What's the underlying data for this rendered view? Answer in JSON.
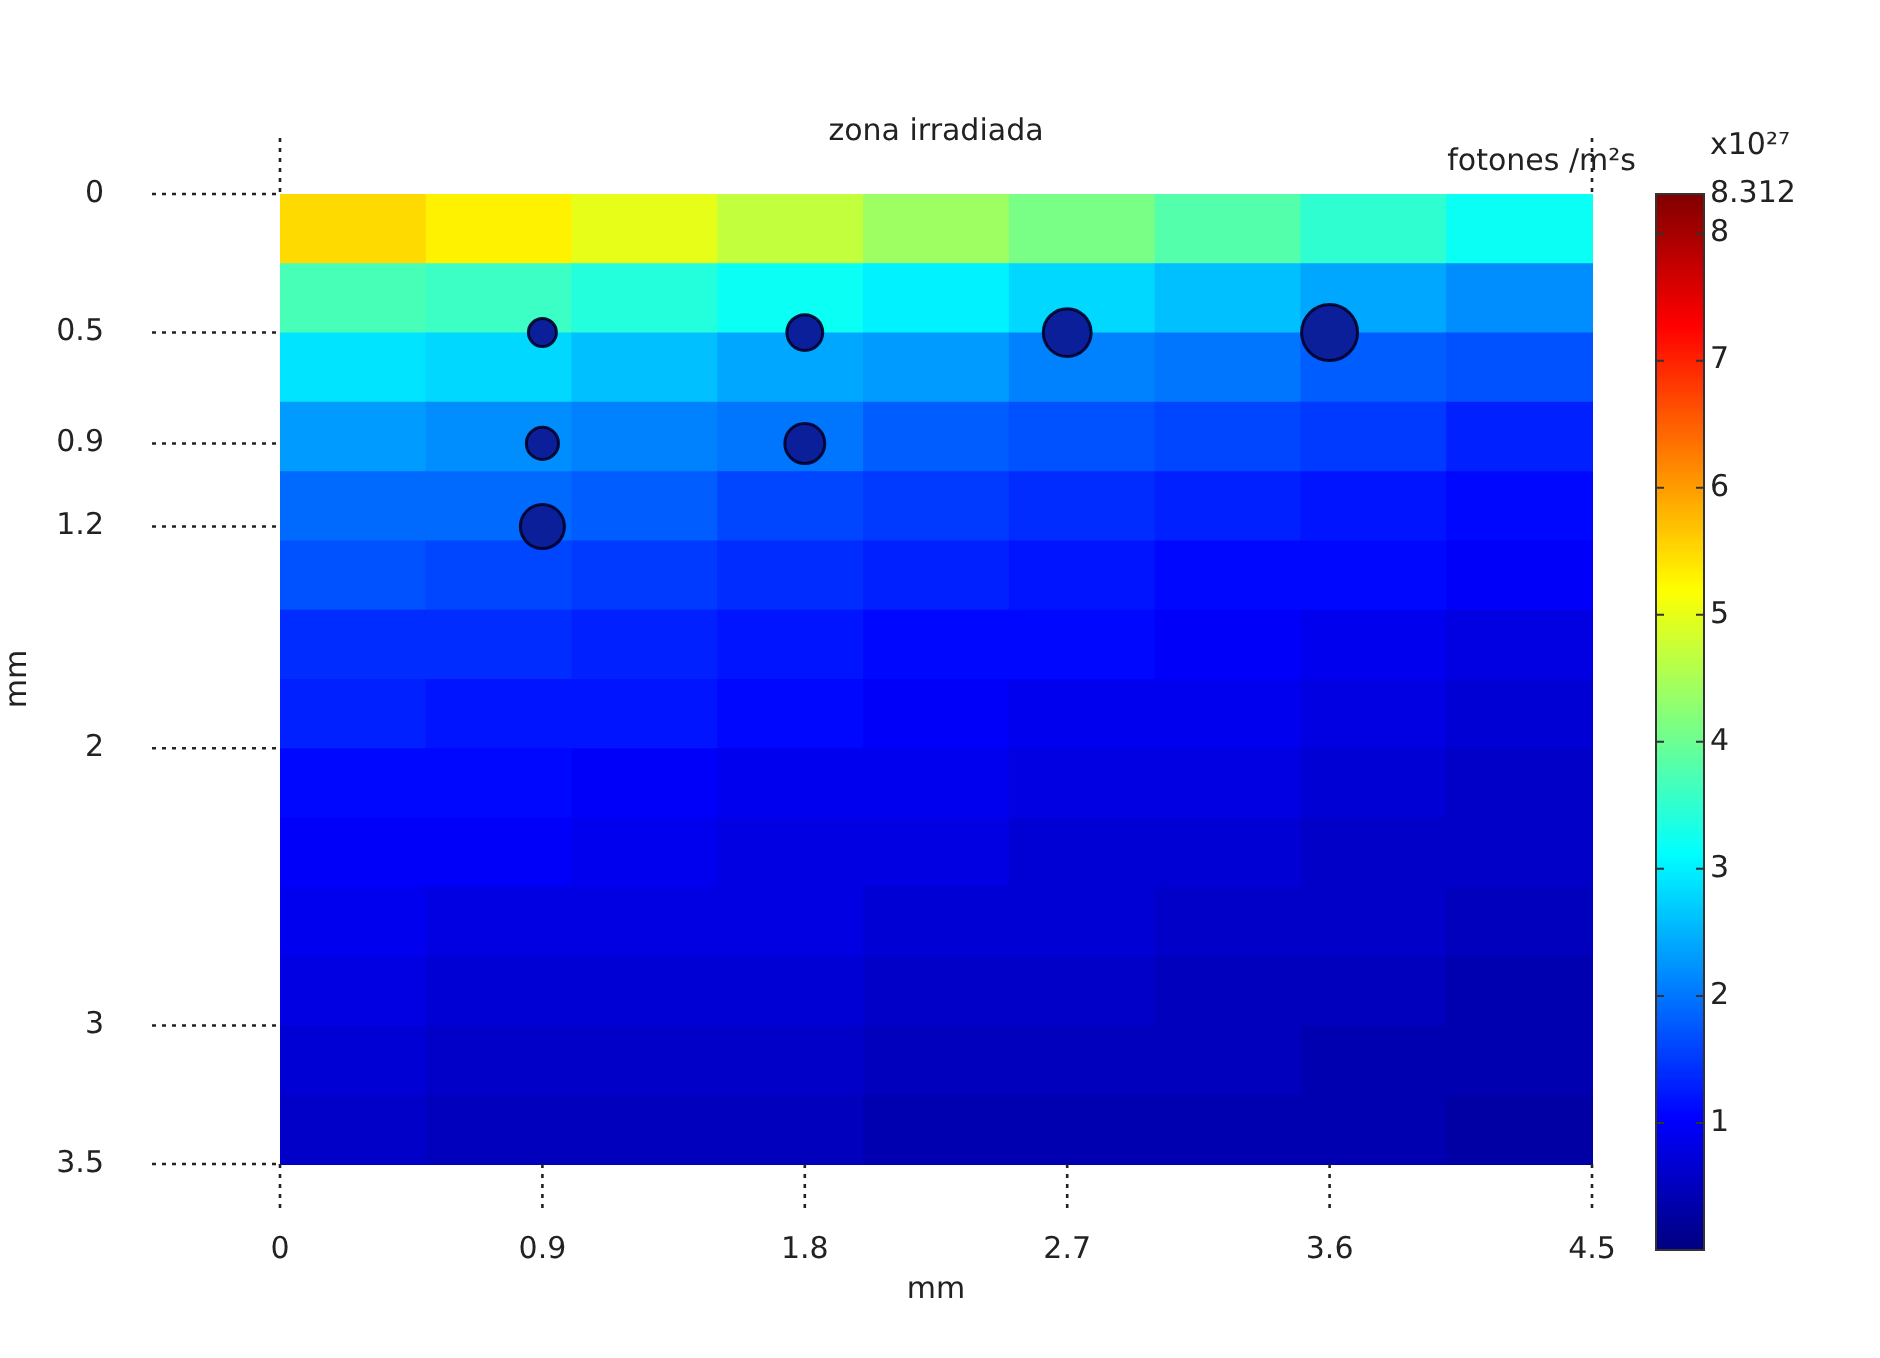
{
  "chart_data": {
    "type": "heatmap",
    "title": "zona irradiada",
    "xlabel": "mm",
    "ylabel": "mm",
    "clabel": "fotones /m²s",
    "annotations": [
      "x10²⁷"
    ],
    "cells": [
      [
        5.5,
        5.3,
        5.0,
        4.7,
        4.4,
        4.1,
        3.8,
        3.5,
        3.2
      ],
      [
        3.7,
        3.6,
        3.4,
        3.2,
        3.0,
        2.8,
        2.6,
        2.4,
        2.2
      ],
      [
        2.9,
        2.8,
        2.6,
        2.4,
        2.3,
        2.1,
        2.0,
        1.8,
        1.7
      ],
      [
        2.3,
        2.2,
        2.1,
        2.0,
        1.8,
        1.7,
        1.6,
        1.5,
        1.3
      ],
      [
        1.9,
        1.9,
        1.8,
        1.6,
        1.5,
        1.4,
        1.3,
        1.2,
        1.1
      ],
      [
        1.7,
        1.6,
        1.5,
        1.4,
        1.3,
        1.2,
        1.1,
        1.1,
        1.0
      ],
      [
        1.4,
        1.4,
        1.3,
        1.2,
        1.1,
        1.1,
        1.0,
        0.9,
        0.8
      ],
      [
        1.3,
        1.2,
        1.2,
        1.1,
        1.0,
        0.9,
        0.9,
        0.8,
        0.7
      ],
      [
        1.1,
        1.1,
        1.0,
        0.9,
        0.9,
        0.8,
        0.8,
        0.7,
        0.6
      ],
      [
        1.0,
        1.0,
        0.9,
        0.8,
        0.8,
        0.7,
        0.7,
        0.6,
        0.6
      ],
      [
        0.9,
        0.8,
        0.8,
        0.8,
        0.7,
        0.7,
        0.6,
        0.6,
        0.5
      ],
      [
        0.8,
        0.7,
        0.7,
        0.7,
        0.6,
        0.6,
        0.5,
        0.5,
        0.4
      ],
      [
        0.7,
        0.6,
        0.6,
        0.6,
        0.5,
        0.5,
        0.5,
        0.4,
        0.4
      ],
      [
        0.6,
        0.5,
        0.5,
        0.5,
        0.4,
        0.4,
        0.4,
        0.4,
        0.3
      ]
    ],
    "clim": [
      0,
      8.312
    ],
    "cticks": [
      1,
      2,
      3,
      4,
      5,
      6,
      7,
      8,
      8.312
    ],
    "xlim": [
      0,
      4.5
    ],
    "xticks": [
      0,
      0.9,
      1.8,
      2.7,
      3.6,
      4.5
    ],
    "ylim": [
      3.5,
      0
    ],
    "yticks": [
      0,
      0.5,
      0.9,
      1.2,
      2,
      3,
      3.5
    ],
    "series": [
      {
        "type": "bubble",
        "color": "#0b1f9a",
        "x": [
          0.9,
          1.8,
          2.7,
          3.6,
          0.9,
          1.8,
          0.9
        ],
        "values": [
          0.5,
          0.5,
          0.5,
          0.5,
          0.9,
          0.9,
          1.2
        ],
        "sizes": [
          0.25,
          0.41,
          0.73,
          1,
          0.33,
          0.51,
          0.62
        ]
      }
    ],
    "grid": false,
    "legend": false
  }
}
